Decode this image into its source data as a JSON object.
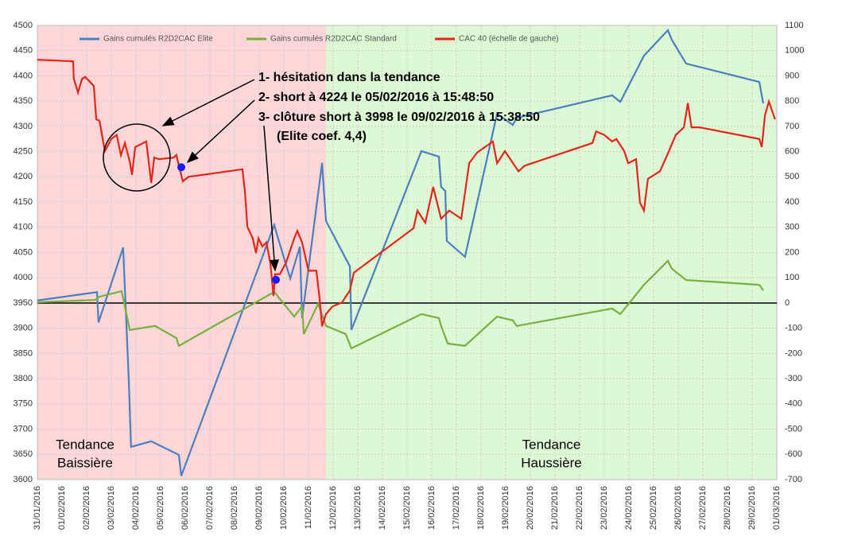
{
  "chart_data": {
    "type": "line",
    "xlim": [
      0,
      30
    ],
    "ylim": [
      3600,
      4500
    ],
    "y2lim": [
      -700,
      1100
    ],
    "grid": true,
    "legend": "top",
    "xticks": [
      {
        "value": 0,
        "label": "31/01/2016"
      },
      {
        "value": 1,
        "label": "01/02/2016"
      },
      {
        "value": 2,
        "label": "02/02/2016"
      },
      {
        "value": 3,
        "label": "03/02/2016"
      },
      {
        "value": 4,
        "label": "04/02/2016"
      },
      {
        "value": 5,
        "label": "05/02/2016"
      },
      {
        "value": 6,
        "label": "06/02/2016"
      },
      {
        "value": 7,
        "label": "07/02/2016"
      },
      {
        "value": 8,
        "label": "08/02/2016"
      },
      {
        "value": 9,
        "label": "09/02/2016"
      },
      {
        "value": 10,
        "label": "10/02/2016"
      },
      {
        "value": 11,
        "label": "11/02/2016"
      },
      {
        "value": 12,
        "label": "12/02/2016"
      },
      {
        "value": 13,
        "label": "13/02/2016"
      },
      {
        "value": 14,
        "label": "14/02/2016"
      },
      {
        "value": 15,
        "label": "15/02/2016"
      },
      {
        "value": 16,
        "label": "16/02/2016"
      },
      {
        "value": 17,
        "label": "17/02/2016"
      },
      {
        "value": 18,
        "label": "18/02/2016"
      },
      {
        "value": 19,
        "label": "19/02/2016"
      },
      {
        "value": 20,
        "label": "20/02/2016"
      },
      {
        "value": 21,
        "label": "21/02/2016"
      },
      {
        "value": 22,
        "label": "22/02/2016"
      },
      {
        "value": 23,
        "label": "23/02/2016"
      },
      {
        "value": 24,
        "label": "24/02/2016"
      },
      {
        "value": 25,
        "label": "25/02/2016"
      },
      {
        "value": 26,
        "label": "26/02/2016"
      },
      {
        "value": 27,
        "label": "27/02/2016"
      },
      {
        "value": 28,
        "label": "28/02/2016"
      },
      {
        "value": 29,
        "label": "29/02/2016"
      },
      {
        "value": 30,
        "label": "01/03/2016"
      }
    ],
    "yticks": [
      3600,
      3650,
      3700,
      3750,
      3800,
      3850,
      3900,
      3950,
      4000,
      4050,
      4100,
      4150,
      4200,
      4250,
      4300,
      4350,
      4400,
      4450,
      4500
    ],
    "y2ticks": [
      -700,
      -600,
      -500,
      -400,
      -300,
      -200,
      -100,
      0,
      100,
      200,
      300,
      400,
      500,
      600,
      700,
      800,
      900,
      1000,
      1100
    ],
    "regions": [
      {
        "from": 0,
        "to": 11.71,
        "color": "#fdd7d7",
        "label": [
          "Tendance",
          "Baissière"
        ]
      },
      {
        "from": 11.71,
        "to": 30,
        "color": "#ddf8d4",
        "label": [
          "Tendance",
          "Haussière"
        ]
      }
    ],
    "hline": {
      "value": 0,
      "axis": "y2",
      "color": "#000000"
    },
    "series": [
      {
        "name": "Gains cumulés R2D2CAC Elite",
        "color": "#4a7fc0",
        "axis": "y2",
        "x": [
          0,
          2.42,
          2.48,
          3.48,
          3.71,
          3.8,
          4.62,
          5.74,
          5.84,
          9.61,
          9.77,
          10.26,
          10.65,
          10.74,
          11.55,
          11.71,
          12.68,
          12.74,
          15.58,
          16.29,
          16.38,
          16.55,
          16.61,
          17.35,
          18.65,
          19.29,
          19.45,
          23.32,
          23.65,
          24.61,
          25.58,
          25.74,
          26.32,
          29.29,
          29.45
        ],
        "values": [
          10,
          43,
          -77,
          220,
          -310,
          -570,
          -548,
          -602,
          -685,
          309,
          255,
          97,
          223,
          -60,
          555,
          325,
          145,
          -107,
          602,
          580,
          460,
          444,
          246,
          183,
          750,
          706,
          734,
          823,
          797,
          980,
          1081,
          1043,
          949,
          876,
          791
        ]
      },
      {
        "name": "Gains cumulés R2D2CAC Standard",
        "color": "#78b040",
        "axis": "y2",
        "x": [
          0,
          2.35,
          2.52,
          3.42,
          3.75,
          4.77,
          5.64,
          5.74,
          9.61,
          10.42,
          10.74,
          10.81,
          11.39,
          11.71,
          12.51,
          12.74,
          15.58,
          16.29,
          16.38,
          16.65,
          17.35,
          18.65,
          19.29,
          19.45,
          23.32,
          23.65,
          24.61,
          25.58,
          25.74,
          26.32,
          29.29,
          29.45
        ],
        "values": [
          3,
          12,
          25,
          47,
          -107,
          -91,
          -139,
          -170,
          44,
          -54,
          -13,
          -123,
          -3,
          -91,
          -123,
          -180,
          -44,
          -60,
          -91,
          -161,
          -170,
          -54,
          -69,
          -91,
          -22,
          -44,
          72,
          167,
          136,
          91,
          72,
          50
        ]
      },
      {
        "name": "CAC 40 (échelle de gauche)",
        "color": "#e8251a",
        "axis": "y",
        "x": [
          0,
          1.45,
          1.48,
          1.65,
          1.81,
          1.94,
          2.29,
          2.39,
          2.52,
          2.74,
          3.0,
          3.22,
          3.39,
          3.55,
          3.75,
          3.84,
          3.97,
          4.42,
          4.62,
          4.74,
          4.94,
          5.52,
          5.64,
          5.9,
          6.13,
          8.32,
          8.42,
          8.52,
          8.74,
          8.87,
          8.97,
          9.13,
          9.29,
          9.45,
          9.58,
          9.65,
          9.84,
          10.09,
          10.42,
          10.55,
          10.74,
          11.0,
          11.32,
          11.45,
          11.55,
          11.71,
          11.97,
          12.36,
          12.68,
          12.84,
          15.26,
          15.42,
          15.74,
          16.06,
          16.38,
          16.71,
          17.2,
          17.52,
          17.84,
          18.48,
          18.65,
          18.97,
          19.52,
          19.77,
          22.52,
          22.67,
          23.0,
          23.32,
          23.49,
          23.81,
          23.97,
          24.29,
          24.45,
          24.61,
          24.77,
          25.26,
          25.58,
          25.9,
          26.23,
          26.39,
          26.54,
          26.87,
          29.29,
          29.39,
          29.52,
          29.68,
          29.93
        ],
        "values": [
          4432,
          4429,
          4394,
          4367,
          4394,
          4398,
          4380,
          4314,
          4311,
          4251,
          4275,
          4283,
          4243,
          4267,
          4230,
          4204,
          4259,
          4270,
          4188,
          4238,
          4235,
          4238,
          4243,
          4191,
          4200,
          4215,
          4172,
          4101,
          4078,
          4049,
          4078,
          4062,
          4070,
          4030,
          3964,
          4007,
          4007,
          4030,
          4078,
          4093,
          4070,
          4014,
          4014,
          3959,
          3904,
          3928,
          3943,
          3951,
          3975,
          4010,
          4098,
          4133,
          4109,
          4180,
          4117,
          4133,
          4117,
          4227,
          4248,
          4270,
          4227,
          4251,
          4211,
          4222,
          4267,
          4290,
          4283,
          4270,
          4275,
          4251,
          4227,
          4235,
          4149,
          4133,
          4196,
          4211,
          4246,
          4283,
          4298,
          4346,
          4298,
          4298,
          4275,
          4259,
          4322,
          4349,
          4314
        ]
      }
    ],
    "markers": {
      "color": "#1a1aff",
      "x": [
        5.84,
        9.68
      ],
      "values": [
        4219,
        3996
      ]
    },
    "annotations": [
      "1- hésitation dans la tendance",
      "2- short à 4224 le 05/02/2016 à 15:48:50",
      "3- clôture short à 3998 le 09/02/2016 à 15:38:50",
      "(Elite coef. 4,4)"
    ]
  }
}
